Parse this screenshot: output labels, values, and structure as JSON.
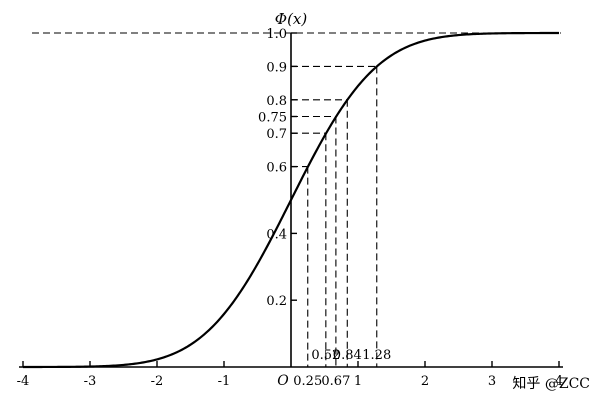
{
  "chart_data": {
    "type": "line",
    "function": "standard normal cumulative distribution function",
    "title": "Φ(x)",
    "xlabel": "",
    "ylabel": "Φ(x)",
    "xlim": [
      -4,
      4
    ],
    "ylim": [
      0,
      1
    ],
    "grid": false,
    "origin_label": "O",
    "x_ticks": [
      -4,
      -3,
      -2,
      -1,
      1,
      2,
      3,
      4
    ],
    "x_tick_labels": [
      "-4",
      "-3",
      "-2",
      "-1",
      "1",
      "2",
      "3",
      "4"
    ],
    "y_ticks": [
      0.2,
      0.4,
      0.6,
      0.7,
      0.75,
      0.8,
      0.9,
      1.0
    ],
    "y_tick_labels": [
      "0.2",
      "0.4",
      "0.6",
      "0.7",
      "0.75",
      "0.8",
      "0.9",
      "1.0"
    ],
    "series": [
      {
        "x": [
          -4,
          -3.5,
          -3,
          -2.5,
          -2,
          -1.5,
          -1,
          -0.5,
          0,
          0.5,
          1,
          1.5,
          2,
          2.5,
          3,
          3.5,
          4
        ],
        "values": [
          0.0,
          0.0002,
          0.0013,
          0.0062,
          0.0228,
          0.0668,
          0.1587,
          0.3085,
          0.5,
          0.6915,
          0.8413,
          0.9332,
          0.9772,
          0.9938,
          0.9987,
          0.9998,
          1.0
        ]
      }
    ],
    "reference_points": [
      {
        "x": 0.25,
        "y": 0.6,
        "label": "0.25"
      },
      {
        "x": 0.52,
        "y": 0.7,
        "label": "0.52"
      },
      {
        "x": 0.67,
        "y": 0.75,
        "label": "0.67"
      },
      {
        "x": 0.84,
        "y": 0.8,
        "label": "0.84"
      },
      {
        "x": 1.28,
        "y": 0.9,
        "label": "1.28"
      }
    ],
    "upper_asymptote": 1.0
  },
  "watermark": "知乎 @ZCC"
}
